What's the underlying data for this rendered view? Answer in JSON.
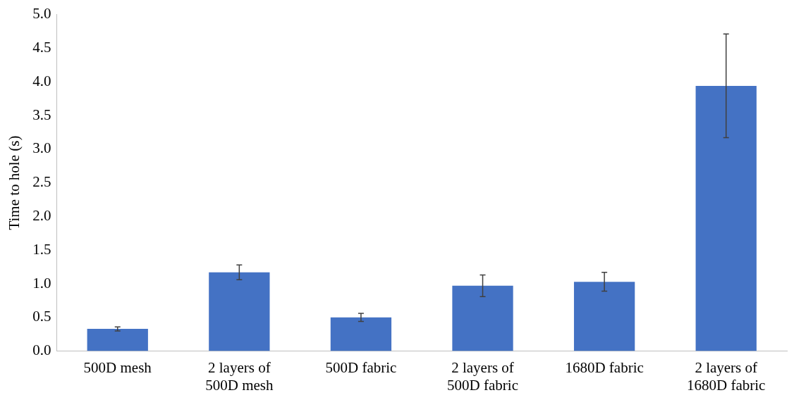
{
  "chart_data": {
    "type": "bar",
    "ylabel": "Time to hole (s)",
    "categories": [
      "500D mesh",
      "2 layers of 500D mesh",
      "500D fabric",
      "2 layers of 500D fabric",
      "1680D fabric",
      "2 layers of 1680D fabric"
    ],
    "values": [
      0.33,
      1.17,
      0.5,
      0.97,
      1.03,
      3.94
    ],
    "errors": [
      0.03,
      0.11,
      0.06,
      0.16,
      0.14,
      0.77
    ],
    "color": "#4472c4",
    "ylim": [
      0,
      5
    ],
    "yticks": [
      {
        "value": 0,
        "label": "0.0"
      },
      {
        "value": 0.5,
        "label": "0.5"
      },
      {
        "value": 1,
        "label": "1.0"
      },
      {
        "value": 1.5,
        "label": "1.5"
      },
      {
        "value": 2,
        "label": "2.0"
      },
      {
        "value": 2.5,
        "label": "2.5"
      },
      {
        "value": 3,
        "label": "3.0"
      },
      {
        "value": 3.5,
        "label": "3.5"
      },
      {
        "value": 4,
        "label": "4.0"
      },
      {
        "value": 4.5,
        "label": "4.5"
      },
      {
        "value": 5,
        "label": "5.0"
      }
    ],
    "grid": false,
    "legend": false
  }
}
